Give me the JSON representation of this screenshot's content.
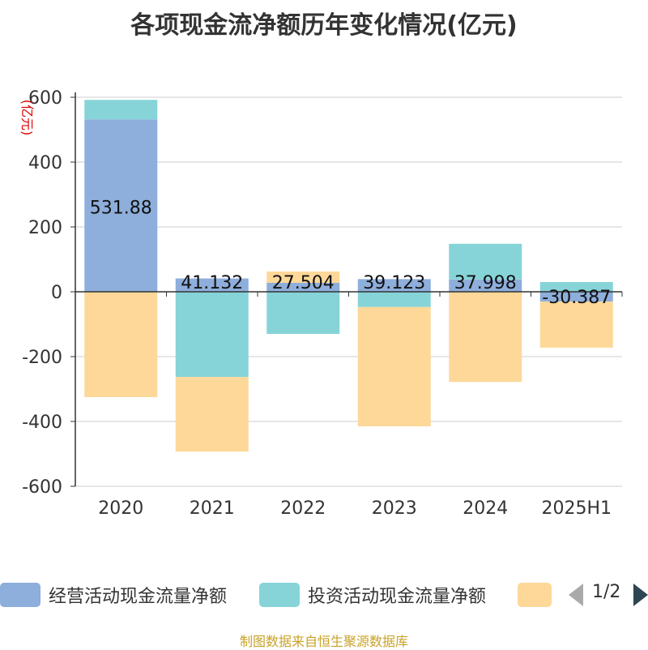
{
  "chart_data": {
    "type": "bar",
    "stacked": true,
    "title": "各项现金流净额历年变化情况(亿元)",
    "ylabel": "(亿元)",
    "ylim": [
      -600,
      600
    ],
    "yticks": [
      600,
      400,
      200,
      0,
      -200,
      -400,
      -600
    ],
    "grid": true,
    "legend_position": "bottom",
    "categories": [
      "2020",
      "2021",
      "2022",
      "2023",
      "2024",
      "2025H1"
    ],
    "series": [
      {
        "name": "经营活动现金流量净额",
        "color": "#8eaedb",
        "values": [
          531.88,
          41.132,
          27.504,
          39.123,
          37.998,
          -30.387
        ],
        "labels": [
          "531.88",
          "41.132",
          "27.504",
          "39.123",
          "37.998",
          "-30.387"
        ]
      },
      {
        "name": "投资活动现金流量净额",
        "color": "#86d4d8",
        "values": [
          60,
          -263,
          -130,
          -47,
          110,
          30
        ]
      },
      {
        "name": "",
        "color": "#fdd899",
        "values": [
          -325,
          -230,
          35,
          -368,
          -278,
          -142
        ]
      }
    ]
  },
  "legend": {
    "items": [
      "经营活动现金流量净额",
      "投资活动现金流量净额",
      ""
    ],
    "pager": "1/2"
  },
  "footer": {
    "source": "制图数据来自恒生聚源数据库"
  }
}
